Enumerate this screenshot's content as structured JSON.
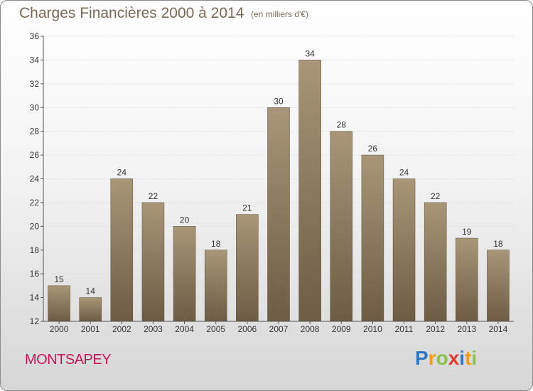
{
  "header": {
    "title": "Charges Financières 2000 à 2014",
    "subtitle": "(en milliers d'€)"
  },
  "footer": {
    "town": "MONTSAPEY",
    "brand_letters": [
      {
        "ch": "P",
        "color": "#2f78c4"
      },
      {
        "ch": "r",
        "color": "#f39c12"
      },
      {
        "ch": "o",
        "color": "#8bc34a"
      },
      {
        "ch": "x",
        "color": "#e53935"
      },
      {
        "ch": "i",
        "color": "#2f78c4"
      },
      {
        "ch": "t",
        "color": "#f39c12"
      },
      {
        "ch": "i",
        "color": "#8bc34a"
      }
    ]
  },
  "chart_data": {
    "type": "bar",
    "categories": [
      "2000",
      "2001",
      "2002",
      "2003",
      "2004",
      "2005",
      "2006",
      "2007",
      "2008",
      "2009",
      "2010",
      "2011",
      "2012",
      "2013",
      "2014"
    ],
    "values": [
      15,
      14,
      24,
      22,
      20,
      18,
      21,
      30,
      34,
      28,
      26,
      24,
      22,
      19,
      18
    ],
    "ylim": [
      12,
      36
    ],
    "yticks": [
      12,
      14,
      16,
      18,
      20,
      22,
      24,
      26,
      28,
      30,
      32,
      34,
      36
    ],
    "grid": true,
    "bar_color_top": "#a99678",
    "bar_color_bottom": "#6d5c44"
  }
}
